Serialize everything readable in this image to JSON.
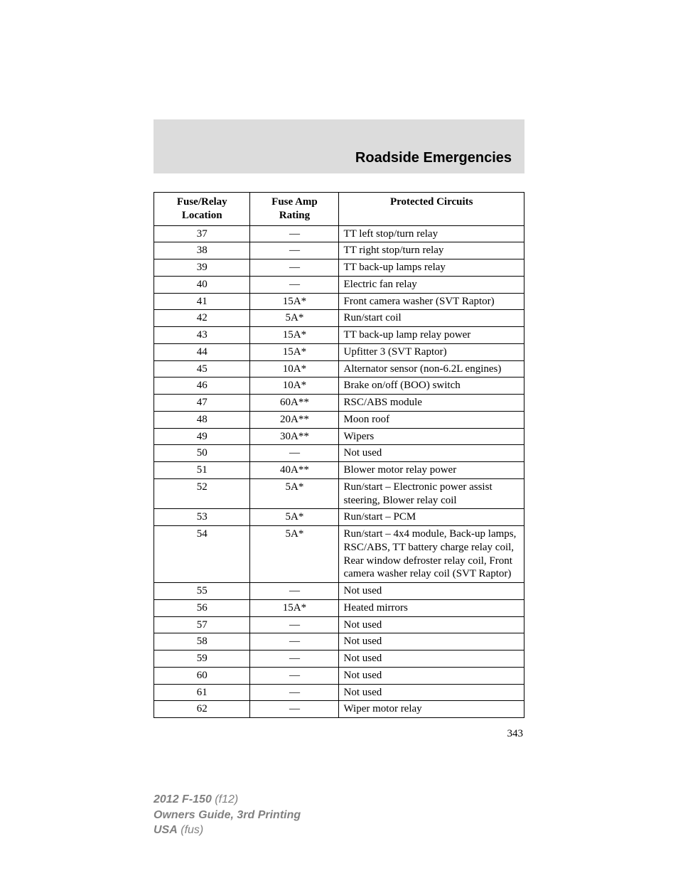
{
  "header": {
    "title": "Roadside Emergencies",
    "band_bg": "#dcdcdc",
    "title_fontsize": 20,
    "title_family": "Arial"
  },
  "table": {
    "columns": [
      {
        "line1": "Fuse/Relay",
        "line2": "Location",
        "width_pct": 26,
        "align": "center"
      },
      {
        "line1": "Fuse Amp",
        "line2": "Rating",
        "width_pct": 24,
        "align": "center"
      },
      {
        "line1": "Protected Circuits",
        "line2": "",
        "width_pct": 50,
        "align": "center"
      }
    ],
    "font_size": 15,
    "border_color": "#000000",
    "rows": [
      {
        "loc": "37",
        "amp": "—",
        "circ": "TT left stop/turn relay"
      },
      {
        "loc": "38",
        "amp": "—",
        "circ": "TT right stop/turn relay"
      },
      {
        "loc": "39",
        "amp": "—",
        "circ": "TT back-up lamps relay"
      },
      {
        "loc": "40",
        "amp": "—",
        "circ": "Electric fan relay"
      },
      {
        "loc": "41",
        "amp": "15A*",
        "circ": "Front camera washer (SVT Raptor)"
      },
      {
        "loc": "42",
        "amp": "5A*",
        "circ": "Run/start coil"
      },
      {
        "loc": "43",
        "amp": "15A*",
        "circ": "TT back-up lamp relay power"
      },
      {
        "loc": "44",
        "amp": "15A*",
        "circ": "Upfitter 3 (SVT Raptor)"
      },
      {
        "loc": "45",
        "amp": "10A*",
        "circ": "Alternator sensor (non-6.2L engines)"
      },
      {
        "loc": "46",
        "amp": "10A*",
        "circ": "Brake on/off (BOO) switch"
      },
      {
        "loc": "47",
        "amp": "60A**",
        "circ": "RSC/ABS module"
      },
      {
        "loc": "48",
        "amp": "20A**",
        "circ": "Moon roof"
      },
      {
        "loc": "49",
        "amp": "30A**",
        "circ": "Wipers"
      },
      {
        "loc": "50",
        "amp": "—",
        "circ": "Not used"
      },
      {
        "loc": "51",
        "amp": "40A**",
        "circ": "Blower motor relay power"
      },
      {
        "loc": "52",
        "amp": "5A*",
        "circ": "Run/start – Electronic power assist steering, Blower relay coil"
      },
      {
        "loc": "53",
        "amp": "5A*",
        "circ": "Run/start – PCM"
      },
      {
        "loc": "54",
        "amp": "5A*",
        "circ": "Run/start – 4x4 module, Back-up lamps, RSC/ABS, TT battery charge relay coil, Rear window defroster relay coil, Front camera washer relay coil (SVT Raptor)"
      },
      {
        "loc": "55",
        "amp": "—",
        "circ": "Not used"
      },
      {
        "loc": "56",
        "amp": "15A*",
        "circ": "Heated mirrors"
      },
      {
        "loc": "57",
        "amp": "—",
        "circ": "Not used"
      },
      {
        "loc": "58",
        "amp": "—",
        "circ": "Not used"
      },
      {
        "loc": "59",
        "amp": "—",
        "circ": "Not used"
      },
      {
        "loc": "60",
        "amp": "—",
        "circ": "Not used"
      },
      {
        "loc": "61",
        "amp": "—",
        "circ": "Not used"
      },
      {
        "loc": "62",
        "amp": "—",
        "circ": "Wiper motor relay"
      }
    ]
  },
  "page_number": "343",
  "footer": {
    "line1_bold": "2012 F-150",
    "line1_rest": "(f12)",
    "line2": "Owners Guide, 3rd Printing",
    "line3_bold": "USA",
    "line3_rest": "(fus)",
    "color": "#808080",
    "font_size": 16
  }
}
